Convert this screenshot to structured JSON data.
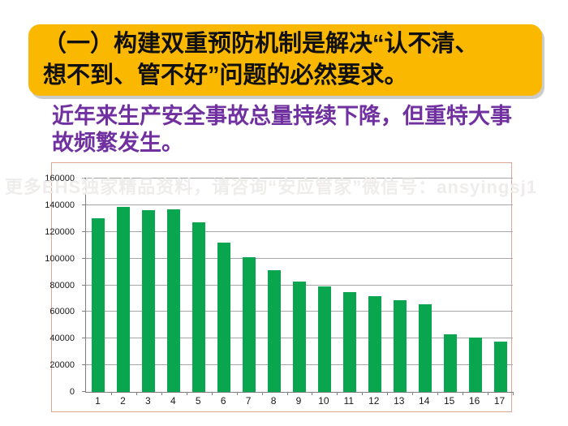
{
  "slide": {
    "banner": {
      "line1": "（一）构建双重预防机制是解决“认不清、",
      "line2": "想不到、管不好”问题的必然要求。"
    },
    "subtitle": {
      "line1": "近年来生产安全事故总量持续下降，但重特大事",
      "line2": "故频繁发生。"
    },
    "watermark": "更多EHS独家精品资料，请咨询“安应管家”微信号：ansyingsj1"
  },
  "colors": {
    "banner_bg": "#fbb800",
    "banner_text": "#101010",
    "subtitle_text": "#7030a0",
    "bar_green": "#0aa64f",
    "chart_border": "#dca795",
    "gridline": "#a6a6a6",
    "axis": "#7f7f7f"
  },
  "chart_data": {
    "type": "bar",
    "title": "",
    "xlabel": "",
    "ylabel": "",
    "categories": [
      "1",
      "2",
      "3",
      "4",
      "5",
      "6",
      "7",
      "8",
      "9",
      "10",
      "11",
      "12",
      "13",
      "14",
      "15",
      "16",
      "17"
    ],
    "values": [
      130000,
      139000,
      136000,
      137000,
      127000,
      112000,
      101000,
      91000,
      83000,
      79000,
      75000,
      72000,
      69000,
      66000,
      43000,
      41000,
      38000
    ],
    "ylim": [
      0,
      160000
    ],
    "yticks": [
      0,
      20000,
      40000,
      60000,
      80000,
      100000,
      120000,
      140000,
      160000
    ],
    "grid": true,
    "legend": false,
    "bar_color": "#0aa64f"
  }
}
